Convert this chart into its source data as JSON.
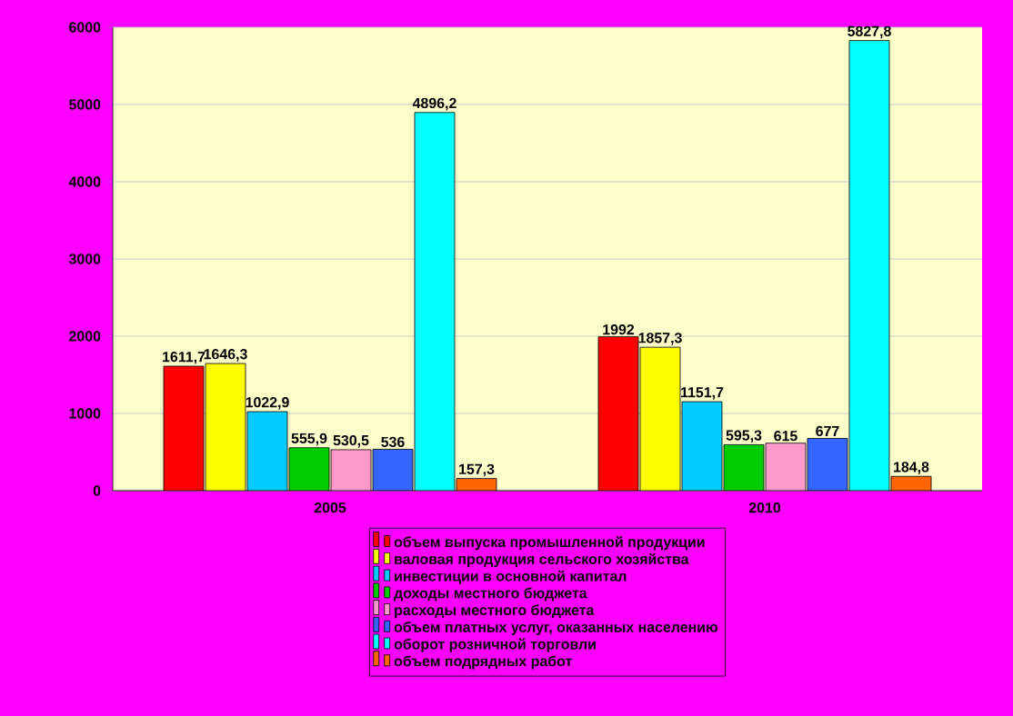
{
  "chart_data": {
    "type": "bar",
    "categories": [
      "2005",
      "2010"
    ],
    "series": [
      {
        "name": "объем выпуска промышленной продукции",
        "color": "#ff0000",
        "values": [
          1611.7,
          1992
        ],
        "value_labels": [
          "1611,7",
          "1992"
        ]
      },
      {
        "name": "валовая продукция сельского хозяйства",
        "color": "#ffff00",
        "values": [
          1646.3,
          1857.3
        ],
        "value_labels": [
          "1646,3",
          "1857,3"
        ]
      },
      {
        "name": "инвестиции в основной капитал",
        "color": "#00ccff",
        "values": [
          1022.9,
          1151.7
        ],
        "value_labels": [
          "1022,9",
          "1151,7"
        ]
      },
      {
        "name": "доходы местного бюджета",
        "color": "#00cc00",
        "values": [
          555.9,
          595.3
        ],
        "value_labels": [
          "555,9",
          "595,3"
        ]
      },
      {
        "name": "расходы местного бюджета",
        "color": "#ff99cc",
        "values": [
          530.5,
          615
        ],
        "value_labels": [
          "530,5",
          "615"
        ]
      },
      {
        "name": "объем платных услуг, оказанных населению",
        "color": "#3366ff",
        "values": [
          536,
          677
        ],
        "value_labels": [
          "536",
          "677"
        ]
      },
      {
        "name": "оборот розничной торговли",
        "color": "#00ffff",
        "values": [
          4896.2,
          5827.8
        ],
        "value_labels": [
          "4896,2",
          "5827,8"
        ]
      },
      {
        "name": "объем подрядных работ",
        "color": "#ff6600",
        "values": [
          157.3,
          184.8
        ],
        "value_labels": [
          "157,3",
          "184,8"
        ]
      }
    ],
    "ylim": [
      0,
      6000
    ],
    "yticks": [
      0,
      1000,
      2000,
      3000,
      4000,
      5000,
      6000
    ],
    "grid": "y",
    "legend": "bottom"
  }
}
